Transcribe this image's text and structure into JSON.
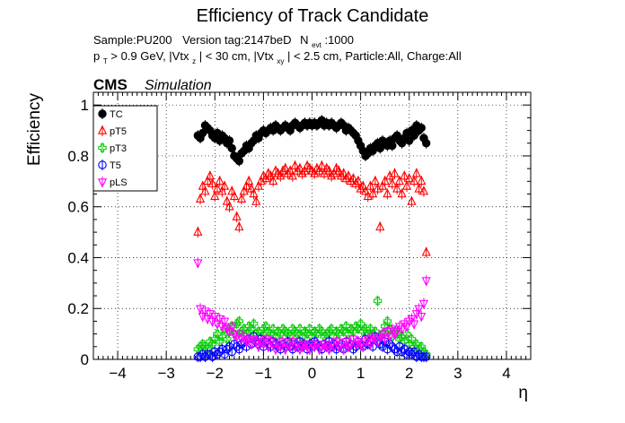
{
  "chart_data": {
    "type": "scatter",
    "title": "Efficiency of Track Candidate",
    "subtitle_line1": {
      "sample": "Sample:PU200",
      "version": "Version tag:2147beD",
      "nevt_prefix": "N",
      "nevt_sub": "evt",
      "nevt_value": ":1000"
    },
    "subtitle_line2": {
      "p": "p",
      "p_sub": "T",
      "cut_a": " > 0.9 GeV, |Vtx",
      "cut_a_sub": "z",
      "cut_b": "| < 30 cm, |Vtx",
      "cut_b_sub": "xy",
      "cut_c": "| < 2.5 cm, Particle:All, Charge:All"
    },
    "cms_label": "CMS",
    "simulation_label": "Simulation",
    "xlabel": "η",
    "ylabel": "Efficiency",
    "xlim": [
      -4.5,
      4.5
    ],
    "ylim": [
      0,
      1.05
    ],
    "xticks": [
      "−4",
      "−3",
      "−2",
      "−1",
      "0",
      "1",
      "2",
      "3",
      "4"
    ],
    "xtick_values": [
      -4,
      -3,
      -2,
      -1,
      0,
      1,
      2,
      3,
      4
    ],
    "yticks": [
      "0",
      "0.2",
      "0.4",
      "0.6",
      "0.8",
      "1"
    ],
    "ytick_values": [
      0,
      0.2,
      0.4,
      0.6,
      0.8,
      1.0
    ],
    "grid": true,
    "legend_position": "top-left",
    "series": [
      {
        "name": "TC",
        "color": "#000000",
        "marker": "filled-circle",
        "x": [
          -2.35,
          -2.3,
          -2.25,
          -2.2,
          -2.15,
          -2.1,
          -2.05,
          -2.0,
          -1.95,
          -1.9,
          -1.85,
          -1.8,
          -1.75,
          -1.7,
          -1.65,
          -1.6,
          -1.55,
          -1.5,
          -1.45,
          -1.4,
          -1.35,
          -1.3,
          -1.25,
          -1.2,
          -1.15,
          -1.1,
          -1.05,
          -1.0,
          -0.95,
          -0.9,
          -0.85,
          -0.8,
          -0.75,
          -0.7,
          -0.65,
          -0.6,
          -0.55,
          -0.5,
          -0.45,
          -0.4,
          -0.35,
          -0.3,
          -0.25,
          -0.2,
          -0.15,
          -0.1,
          -0.05,
          0.0,
          0.05,
          0.1,
          0.15,
          0.2,
          0.25,
          0.3,
          0.35,
          0.4,
          0.45,
          0.5,
          0.55,
          0.6,
          0.65,
          0.7,
          0.75,
          0.8,
          0.85,
          0.9,
          0.95,
          1.0,
          1.05,
          1.1,
          1.15,
          1.2,
          1.25,
          1.3,
          1.35,
          1.4,
          1.45,
          1.5,
          1.55,
          1.6,
          1.65,
          1.7,
          1.75,
          1.8,
          1.85,
          1.9,
          1.95,
          2.0,
          2.05,
          2.1,
          2.15,
          2.2,
          2.25,
          2.3,
          2.35
        ],
        "y": [
          0.88,
          0.87,
          0.89,
          0.92,
          0.91,
          0.9,
          0.88,
          0.87,
          0.89,
          0.86,
          0.88,
          0.87,
          0.85,
          0.86,
          0.83,
          0.8,
          0.79,
          0.78,
          0.81,
          0.82,
          0.84,
          0.83,
          0.85,
          0.86,
          0.88,
          0.87,
          0.89,
          0.9,
          0.89,
          0.9,
          0.91,
          0.9,
          0.92,
          0.91,
          0.9,
          0.91,
          0.92,
          0.91,
          0.9,
          0.92,
          0.93,
          0.92,
          0.91,
          0.92,
          0.93,
          0.92,
          0.93,
          0.92,
          0.93,
          0.92,
          0.93,
          0.94,
          0.92,
          0.93,
          0.92,
          0.93,
          0.92,
          0.91,
          0.92,
          0.93,
          0.92,
          0.9,
          0.91,
          0.9,
          0.89,
          0.88,
          0.86,
          0.84,
          0.82,
          0.8,
          0.81,
          0.83,
          0.82,
          0.84,
          0.85,
          0.83,
          0.86,
          0.85,
          0.84,
          0.86,
          0.84,
          0.87,
          0.88,
          0.86,
          0.85,
          0.87,
          0.89,
          0.86,
          0.9,
          0.88,
          0.92,
          0.9,
          0.91,
          0.87,
          0.85
        ]
      },
      {
        "name": "pT5",
        "color": "#ff0000",
        "marker": "open-triangle",
        "x": [
          -2.35,
          -2.3,
          -2.25,
          -2.2,
          -2.15,
          -2.1,
          -2.05,
          -2.0,
          -1.95,
          -1.9,
          -1.85,
          -1.8,
          -1.75,
          -1.7,
          -1.65,
          -1.6,
          -1.55,
          -1.5,
          -1.45,
          -1.4,
          -1.35,
          -1.3,
          -1.25,
          -1.2,
          -1.15,
          -1.1,
          -1.05,
          -1.0,
          -0.95,
          -0.9,
          -0.85,
          -0.8,
          -0.75,
          -0.7,
          -0.65,
          -0.6,
          -0.55,
          -0.5,
          -0.45,
          -0.4,
          -0.35,
          -0.3,
          -0.25,
          -0.2,
          -0.15,
          -0.1,
          -0.05,
          0.0,
          0.05,
          0.1,
          0.15,
          0.2,
          0.25,
          0.3,
          0.35,
          0.4,
          0.45,
          0.5,
          0.55,
          0.6,
          0.65,
          0.7,
          0.75,
          0.8,
          0.85,
          0.9,
          0.95,
          1.0,
          1.05,
          1.1,
          1.15,
          1.2,
          1.25,
          1.3,
          1.35,
          1.4,
          1.45,
          1.5,
          1.55,
          1.6,
          1.65,
          1.7,
          1.75,
          1.8,
          1.85,
          1.9,
          1.95,
          2.0,
          2.05,
          2.1,
          2.15,
          2.2,
          2.25,
          2.3,
          2.35
        ],
        "y": [
          0.5,
          0.63,
          0.68,
          0.66,
          0.7,
          0.72,
          0.69,
          0.64,
          0.67,
          0.7,
          0.66,
          0.68,
          0.62,
          0.6,
          0.66,
          0.64,
          0.56,
          0.52,
          0.63,
          0.66,
          0.68,
          0.7,
          0.67,
          0.65,
          0.62,
          0.68,
          0.7,
          0.72,
          0.71,
          0.73,
          0.72,
          0.7,
          0.74,
          0.73,
          0.72,
          0.74,
          0.75,
          0.73,
          0.74,
          0.72,
          0.76,
          0.74,
          0.75,
          0.73,
          0.74,
          0.76,
          0.75,
          0.74,
          0.73,
          0.75,
          0.74,
          0.76,
          0.73,
          0.75,
          0.74,
          0.72,
          0.73,
          0.75,
          0.74,
          0.72,
          0.73,
          0.71,
          0.72,
          0.7,
          0.71,
          0.69,
          0.7,
          0.67,
          0.68,
          0.66,
          0.64,
          0.68,
          0.65,
          0.7,
          0.67,
          0.52,
          0.68,
          0.7,
          0.65,
          0.72,
          0.69,
          0.73,
          0.67,
          0.7,
          0.65,
          0.72,
          0.68,
          0.71,
          0.62,
          0.7,
          0.73,
          0.67,
          0.7,
          0.66,
          0.42
        ]
      },
      {
        "name": "pT3",
        "color": "#00cc00",
        "marker": "open-cross",
        "x": [
          -2.35,
          -2.3,
          -2.25,
          -2.2,
          -2.15,
          -2.1,
          -2.05,
          -2.0,
          -1.95,
          -1.9,
          -1.85,
          -1.8,
          -1.75,
          -1.7,
          -1.65,
          -1.6,
          -1.55,
          -1.5,
          -1.45,
          -1.4,
          -1.35,
          -1.3,
          -1.25,
          -1.2,
          -1.15,
          -1.1,
          -1.05,
          -1.0,
          -0.95,
          -0.9,
          -0.85,
          -0.8,
          -0.75,
          -0.7,
          -0.65,
          -0.6,
          -0.55,
          -0.5,
          -0.45,
          -0.4,
          -0.35,
          -0.3,
          -0.25,
          -0.2,
          -0.15,
          -0.1,
          -0.05,
          0.0,
          0.05,
          0.1,
          0.15,
          0.2,
          0.25,
          0.3,
          0.35,
          0.4,
          0.45,
          0.5,
          0.55,
          0.6,
          0.65,
          0.7,
          0.75,
          0.8,
          0.85,
          0.9,
          0.95,
          1.0,
          1.05,
          1.1,
          1.15,
          1.2,
          1.25,
          1.3,
          1.35,
          1.4,
          1.45,
          1.5,
          1.55,
          1.6,
          1.65,
          1.7,
          1.75,
          1.8,
          1.85,
          1.9,
          1.95,
          2.0,
          2.05,
          2.1,
          2.15,
          2.2,
          2.25,
          2.3,
          2.35
        ],
        "y": [
          0.04,
          0.05,
          0.06,
          0.05,
          0.04,
          0.07,
          0.06,
          0.08,
          0.1,
          0.07,
          0.09,
          0.12,
          0.08,
          0.11,
          0.13,
          0.1,
          0.14,
          0.15,
          0.11,
          0.12,
          0.1,
          0.13,
          0.12,
          0.14,
          0.1,
          0.11,
          0.09,
          0.12,
          0.13,
          0.11,
          0.1,
          0.12,
          0.09,
          0.11,
          0.1,
          0.12,
          0.11,
          0.1,
          0.09,
          0.12,
          0.11,
          0.1,
          0.12,
          0.09,
          0.11,
          0.1,
          0.12,
          0.09,
          0.11,
          0.1,
          0.12,
          0.11,
          0.09,
          0.1,
          0.11,
          0.12,
          0.09,
          0.11,
          0.1,
          0.12,
          0.11,
          0.13,
          0.1,
          0.12,
          0.11,
          0.13,
          0.12,
          0.14,
          0.11,
          0.12,
          0.1,
          0.12,
          0.1,
          0.11,
          0.23,
          0.09,
          0.1,
          0.13,
          0.15,
          0.12,
          0.09,
          0.11,
          0.1,
          0.08,
          0.09,
          0.07,
          0.1,
          0.06,
          0.08,
          0.05,
          0.06,
          0.04,
          0.05,
          0.03,
          0.02
        ]
      },
      {
        "name": "T5",
        "color": "#0000ff",
        "marker": "open-circle",
        "x": [
          -2.35,
          -2.3,
          -2.25,
          -2.2,
          -2.15,
          -2.1,
          -2.05,
          -2.0,
          -1.95,
          -1.9,
          -1.85,
          -1.8,
          -1.75,
          -1.7,
          -1.65,
          -1.6,
          -1.55,
          -1.5,
          -1.45,
          -1.4,
          -1.35,
          -1.3,
          -1.25,
          -1.2,
          -1.15,
          -1.1,
          -1.05,
          -1.0,
          -0.95,
          -0.9,
          -0.85,
          -0.8,
          -0.75,
          -0.7,
          -0.65,
          -0.6,
          -0.55,
          -0.5,
          -0.45,
          -0.4,
          -0.35,
          -0.3,
          -0.25,
          -0.2,
          -0.15,
          -0.1,
          -0.05,
          0.0,
          0.05,
          0.1,
          0.15,
          0.2,
          0.25,
          0.3,
          0.35,
          0.4,
          0.45,
          0.5,
          0.55,
          0.6,
          0.65,
          0.7,
          0.75,
          0.8,
          0.85,
          0.9,
          0.95,
          1.0,
          1.05,
          1.1,
          1.15,
          1.2,
          1.25,
          1.3,
          1.35,
          1.4,
          1.45,
          1.5,
          1.55,
          1.6,
          1.65,
          1.7,
          1.75,
          1.8,
          1.85,
          1.9,
          1.95,
          2.0,
          2.05,
          2.1,
          2.15,
          2.2,
          2.25,
          2.3,
          2.35
        ],
        "y": [
          0.01,
          0.01,
          0.02,
          0.01,
          0.02,
          0.02,
          0.01,
          0.03,
          0.02,
          0.03,
          0.04,
          0.02,
          0.04,
          0.05,
          0.03,
          0.06,
          0.05,
          0.04,
          0.06,
          0.07,
          0.05,
          0.08,
          0.06,
          0.09,
          0.07,
          0.06,
          0.08,
          0.05,
          0.07,
          0.06,
          0.05,
          0.07,
          0.06,
          0.05,
          0.04,
          0.06,
          0.05,
          0.07,
          0.05,
          0.04,
          0.06,
          0.05,
          0.07,
          0.05,
          0.06,
          0.04,
          0.06,
          0.05,
          0.07,
          0.06,
          0.05,
          0.04,
          0.06,
          0.05,
          0.07,
          0.05,
          0.06,
          0.04,
          0.05,
          0.06,
          0.04,
          0.07,
          0.05,
          0.06,
          0.04,
          0.05,
          0.07,
          0.06,
          0.05,
          0.08,
          0.06,
          0.07,
          0.05,
          0.09,
          0.07,
          0.06,
          0.05,
          0.07,
          0.04,
          0.06,
          0.05,
          0.04,
          0.03,
          0.05,
          0.03,
          0.04,
          0.02,
          0.03,
          0.02,
          0.03,
          0.01,
          0.02,
          0.01,
          0.01,
          0.01
        ]
      },
      {
        "name": "pLS",
        "color": "#ff00ff",
        "marker": "open-inverted-triangle",
        "x": [
          -2.35,
          -2.3,
          -2.25,
          -2.2,
          -2.15,
          -2.1,
          -2.05,
          -2.0,
          -1.95,
          -1.9,
          -1.85,
          -1.8,
          -1.75,
          -1.7,
          -1.65,
          -1.6,
          -1.55,
          -1.5,
          -1.45,
          -1.4,
          -1.35,
          -1.3,
          -1.25,
          -1.2,
          -1.15,
          -1.1,
          -1.05,
          -1.0,
          -0.95,
          -0.9,
          -0.85,
          -0.8,
          -0.75,
          -0.7,
          -0.65,
          -0.6,
          -0.55,
          -0.5,
          -0.45,
          -0.4,
          -0.35,
          -0.3,
          -0.25,
          -0.2,
          -0.15,
          -0.1,
          -0.05,
          0.0,
          0.05,
          0.1,
          0.15,
          0.2,
          0.25,
          0.3,
          0.35,
          0.4,
          0.45,
          0.5,
          0.55,
          0.6,
          0.65,
          0.7,
          0.75,
          0.8,
          0.85,
          0.9,
          0.95,
          1.0,
          1.05,
          1.1,
          1.15,
          1.2,
          1.25,
          1.3,
          1.35,
          1.4,
          1.45,
          1.5,
          1.55,
          1.6,
          1.65,
          1.7,
          1.75,
          1.8,
          1.85,
          1.9,
          1.95,
          2.0,
          2.05,
          2.1,
          2.15,
          2.2,
          2.25,
          2.3,
          2.35
        ],
        "y": [
          0.38,
          0.2,
          0.17,
          0.19,
          0.16,
          0.18,
          0.15,
          0.17,
          0.14,
          0.16,
          0.13,
          0.15,
          0.12,
          0.11,
          0.13,
          0.1,
          0.09,
          0.1,
          0.08,
          0.09,
          0.07,
          0.08,
          0.06,
          0.08,
          0.07,
          0.05,
          0.07,
          0.06,
          0.08,
          0.05,
          0.07,
          0.06,
          0.04,
          0.06,
          0.05,
          0.07,
          0.04,
          0.06,
          0.05,
          0.07,
          0.05,
          0.06,
          0.04,
          0.05,
          0.06,
          0.05,
          0.04,
          0.06,
          0.05,
          0.06,
          0.04,
          0.05,
          0.06,
          0.05,
          0.04,
          0.06,
          0.05,
          0.07,
          0.05,
          0.06,
          0.04,
          0.07,
          0.05,
          0.06,
          0.08,
          0.06,
          0.07,
          0.06,
          0.05,
          0.07,
          0.08,
          0.06,
          0.09,
          0.08,
          0.07,
          0.09,
          0.1,
          0.08,
          0.11,
          0.09,
          0.12,
          0.1,
          0.11,
          0.13,
          0.12,
          0.14,
          0.13,
          0.15,
          0.16,
          0.14,
          0.18,
          0.2,
          0.17,
          0.22,
          0.31
        ]
      }
    ]
  }
}
